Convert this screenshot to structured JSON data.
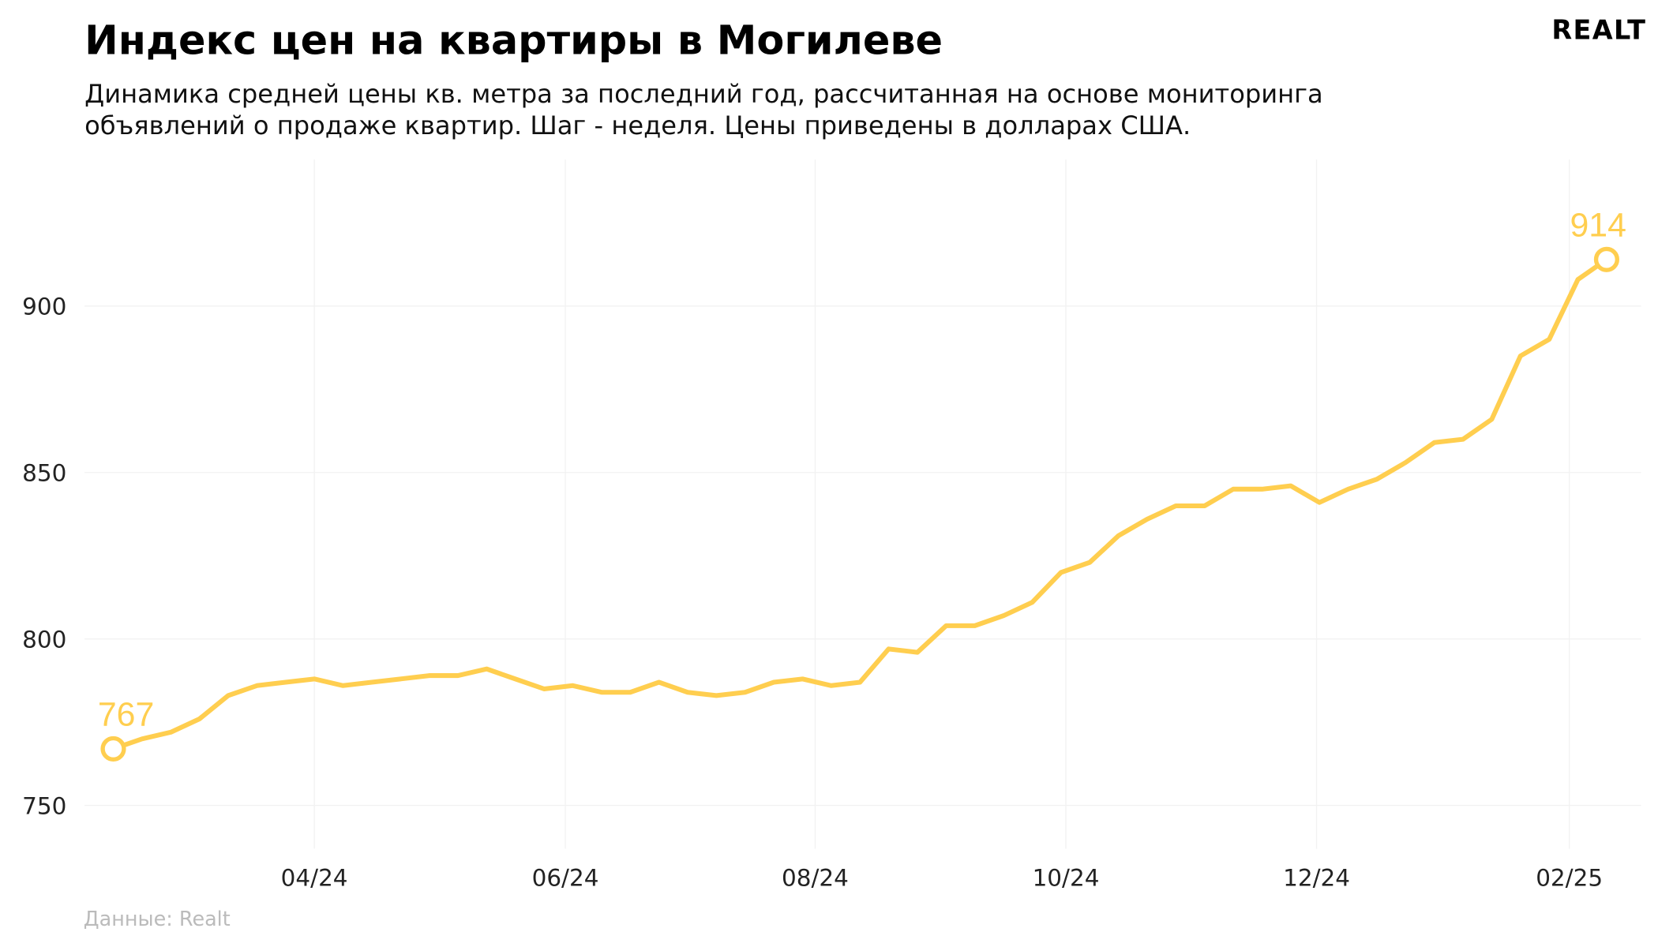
{
  "header": {
    "title": "Индекс цен на квартиры в Могилеве",
    "subtitle_line1": "Динамика средней цены кв. метра за последний год, рассчитанная на основе мониторинга",
    "subtitle_line2": "объявлений о продаже квартир. Шаг - неделя. Цены приведены в долларах США.",
    "logo": "REALT"
  },
  "footer": {
    "source": "Данные: Realt"
  },
  "colors": {
    "line": "#FFCE4F",
    "grid": "#F2F2F2"
  },
  "chart_data": {
    "type": "line",
    "title": "Индекс цен на квартиры в Могилеве",
    "xlabel": "",
    "ylabel": "",
    "x_unit": "week index",
    "values": [
      767,
      770,
      772,
      776,
      783,
      786,
      787,
      788,
      786,
      787,
      788,
      789,
      789,
      791,
      788,
      785,
      786,
      784,
      784,
      787,
      784,
      783,
      784,
      787,
      788,
      786,
      787,
      797,
      796,
      804,
      804,
      807,
      811,
      820,
      823,
      831,
      836,
      840,
      840,
      845,
      845,
      846,
      841,
      845,
      848,
      853,
      859,
      860,
      866,
      885,
      890,
      908,
      914
    ],
    "xlim": [
      -1,
      53.2
    ],
    "ylim": [
      737,
      944
    ],
    "yticks": [
      750,
      800,
      850,
      900
    ],
    "xticks": [
      {
        "pos": 7.0,
        "label": "04/24"
      },
      {
        "pos": 15.74,
        "label": "06/24"
      },
      {
        "pos": 24.44,
        "label": "08/24"
      },
      {
        "pos": 33.17,
        "label": "10/24"
      },
      {
        "pos": 41.9,
        "label": "12/24"
      },
      {
        "pos": 50.7,
        "label": "02/25"
      }
    ],
    "annotations": [
      {
        "index": 0,
        "label": "767"
      },
      {
        "index": 52,
        "label": "914"
      }
    ],
    "grid": true
  }
}
